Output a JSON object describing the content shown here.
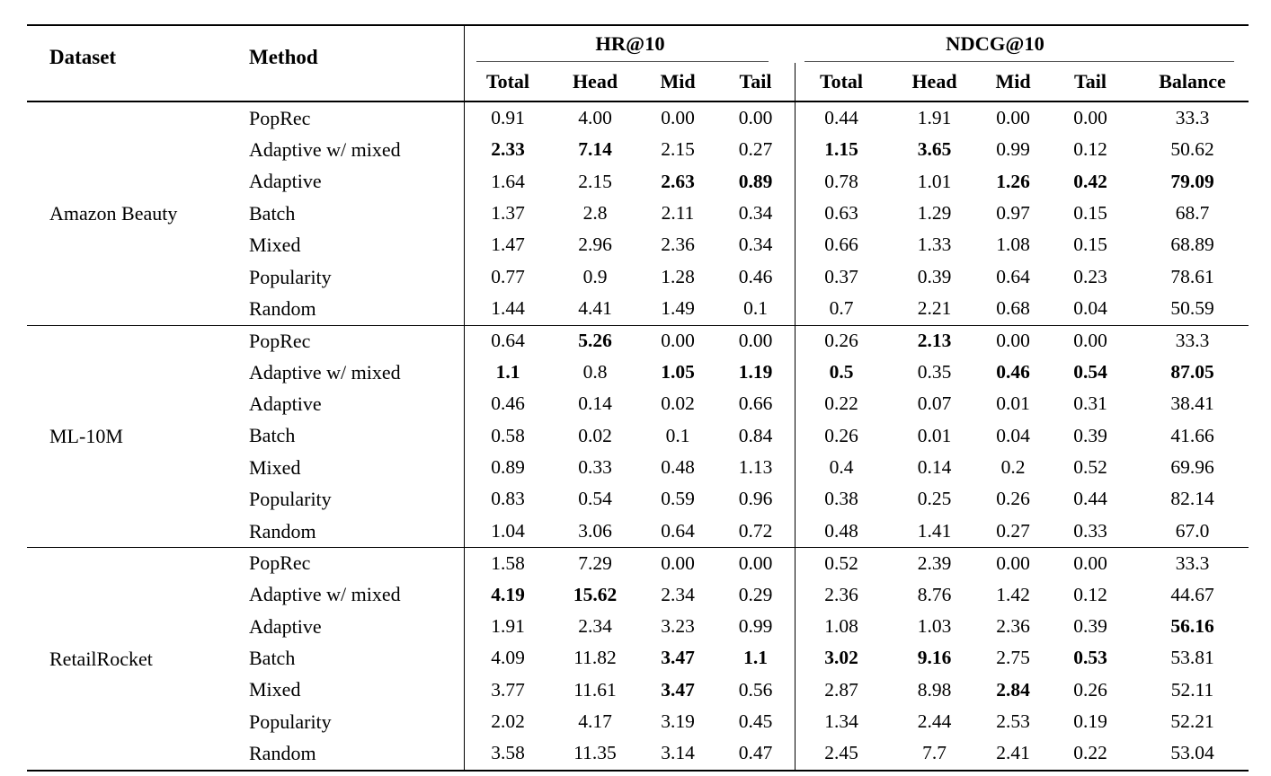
{
  "table": {
    "columns": {
      "dataset": "Dataset",
      "method": "Method",
      "group_hr": "HR@10",
      "group_ndcg": "NDCG@10",
      "sub": [
        "Total",
        "Head",
        "Mid",
        "Tail",
        "Total",
        "Head",
        "Mid",
        "Tail",
        "Balance"
      ]
    },
    "groups": [
      {
        "dataset": "Amazon Beauty",
        "rows": [
          {
            "method": "PopRec",
            "values": [
              "0.91",
              "4.00",
              "0.00",
              "0.00",
              "0.44",
              "1.91",
              "0.00",
              "0.00",
              "33.3"
            ],
            "bold": []
          },
          {
            "method": "Adaptive w/ mixed",
            "values": [
              "2.33",
              "7.14",
              "2.15",
              "0.27",
              "1.15",
              "3.65",
              "0.99",
              "0.12",
              "50.62"
            ],
            "bold": [
              0,
              1,
              4,
              5
            ]
          },
          {
            "method": "Adaptive",
            "values": [
              "1.64",
              "2.15",
              "2.63",
              "0.89",
              "0.78",
              "1.01",
              "1.26",
              "0.42",
              "79.09"
            ],
            "bold": [
              2,
              3,
              6,
              7,
              8
            ]
          },
          {
            "method": "Batch",
            "values": [
              "1.37",
              "2.8",
              "2.11",
              "0.34",
              "0.63",
              "1.29",
              "0.97",
              "0.15",
              "68.7"
            ],
            "bold": []
          },
          {
            "method": "Mixed",
            "values": [
              "1.47",
              "2.96",
              "2.36",
              "0.34",
              "0.66",
              "1.33",
              "1.08",
              "0.15",
              "68.89"
            ],
            "bold": []
          },
          {
            "method": "Popularity",
            "values": [
              "0.77",
              "0.9",
              "1.28",
              "0.46",
              "0.37",
              "0.39",
              "0.64",
              "0.23",
              "78.61"
            ],
            "bold": []
          },
          {
            "method": "Random",
            "values": [
              "1.44",
              "4.41",
              "1.49",
              "0.1",
              "0.7",
              "2.21",
              "0.68",
              "0.04",
              "50.59"
            ],
            "bold": []
          }
        ]
      },
      {
        "dataset": "ML-10M",
        "rows": [
          {
            "method": "PopRec",
            "values": [
              "0.64",
              "5.26",
              "0.00",
              "0.00",
              "0.26",
              "2.13",
              "0.00",
              "0.00",
              "33.3"
            ],
            "bold": [
              1,
              5
            ]
          },
          {
            "method": "Adaptive w/ mixed",
            "values": [
              "1.1",
              "0.8",
              "1.05",
              "1.19",
              "0.5",
              "0.35",
              "0.46",
              "0.54",
              "87.05"
            ],
            "bold": [
              0,
              2,
              3,
              4,
              6,
              7,
              8
            ]
          },
          {
            "method": "Adaptive",
            "values": [
              "0.46",
              "0.14",
              "0.02",
              "0.66",
              "0.22",
              "0.07",
              "0.01",
              "0.31",
              "38.41"
            ],
            "bold": []
          },
          {
            "method": "Batch",
            "values": [
              "0.58",
              "0.02",
              "0.1",
              "0.84",
              "0.26",
              "0.01",
              "0.04",
              "0.39",
              "41.66"
            ],
            "bold": []
          },
          {
            "method": "Mixed",
            "values": [
              "0.89",
              "0.33",
              "0.48",
              "1.13",
              "0.4",
              "0.14",
              "0.2",
              "0.52",
              "69.96"
            ],
            "bold": []
          },
          {
            "method": "Popularity",
            "values": [
              "0.83",
              "0.54",
              "0.59",
              "0.96",
              "0.38",
              "0.25",
              "0.26",
              "0.44",
              "82.14"
            ],
            "bold": []
          },
          {
            "method": "Random",
            "values": [
              "1.04",
              "3.06",
              "0.64",
              "0.72",
              "0.48",
              "1.41",
              "0.27",
              "0.33",
              "67.0"
            ],
            "bold": []
          }
        ]
      },
      {
        "dataset": "RetailRocket",
        "rows": [
          {
            "method": "PopRec",
            "values": [
              "1.58",
              "7.29",
              "0.00",
              "0.00",
              "0.52",
              "2.39",
              "0.00",
              "0.00",
              "33.3"
            ],
            "bold": []
          },
          {
            "method": "Adaptive w/ mixed",
            "values": [
              "4.19",
              "15.62",
              "2.34",
              "0.29",
              "2.36",
              "8.76",
              "1.42",
              "0.12",
              "44.67"
            ],
            "bold": [
              0,
              1
            ]
          },
          {
            "method": "Adaptive",
            "values": [
              "1.91",
              "2.34",
              "3.23",
              "0.99",
              "1.08",
              "1.03",
              "2.36",
              "0.39",
              "56.16"
            ],
            "bold": [
              8
            ]
          },
          {
            "method": "Batch",
            "values": [
              "4.09",
              "11.82",
              "3.47",
              "1.1",
              "3.02",
              "9.16",
              "2.75",
              "0.53",
              "53.81"
            ],
            "bold": [
              2,
              3,
              4,
              5,
              7
            ]
          },
          {
            "method": "Mixed",
            "values": [
              "3.77",
              "11.61",
              "3.47",
              "0.56",
              "2.87",
              "8.98",
              "2.84",
              "0.26",
              "52.11"
            ],
            "bold": [
              2,
              6
            ]
          },
          {
            "method": "Popularity",
            "values": [
              "2.02",
              "4.17",
              "3.19",
              "0.45",
              "1.34",
              "2.44",
              "2.53",
              "0.19",
              "52.21"
            ],
            "bold": []
          },
          {
            "method": "Random",
            "values": [
              "3.58",
              "11.35",
              "3.14",
              "0.47",
              "2.45",
              "7.7",
              "2.41",
              "0.22",
              "53.04"
            ],
            "bold": []
          }
        ]
      }
    ]
  }
}
